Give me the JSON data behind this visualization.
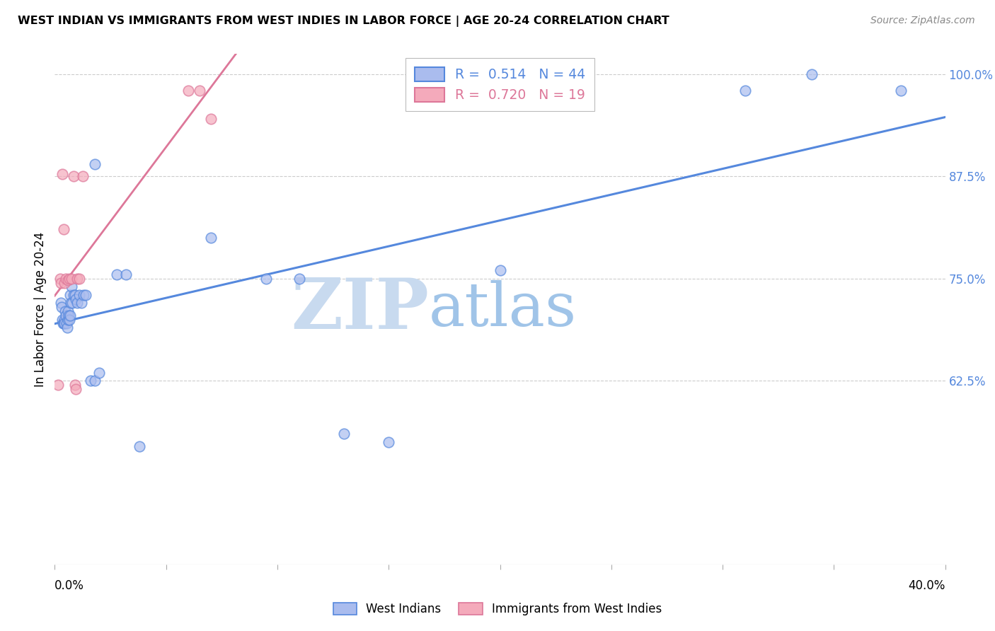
{
  "title": "WEST INDIAN VS IMMIGRANTS FROM WEST INDIES IN LABOR FORCE | AGE 20-24 CORRELATION CHART",
  "source_text": "Source: ZipAtlas.com",
  "ylabel": "In Labor Force | Age 20-24",
  "xlim": [
    0.0,
    0.4
  ],
  "ylim": [
    0.4,
    1.025
  ],
  "ytick_vals": [
    1.0,
    0.875,
    0.75,
    0.625
  ],
  "ytick_labels": [
    "100.0%",
    "87.5%",
    "75.0%",
    "62.5%"
  ],
  "grid_color": "#cccccc",
  "watermark_zip": "ZIP",
  "watermark_atlas": "atlas",
  "watermark_color_zip": "#c8daef",
  "watermark_color_atlas": "#a0c4e8",
  "background_color": "#ffffff",
  "blue_scatter_x": [
    0.0028,
    0.0032,
    0.0035,
    0.0038,
    0.004,
    0.0042,
    0.0045,
    0.0048,
    0.005,
    0.0052,
    0.0055,
    0.0058,
    0.006,
    0.0062,
    0.0065,
    0.0068,
    0.007,
    0.0072,
    0.0075,
    0.008,
    0.0085,
    0.009,
    0.0095,
    0.01,
    0.011,
    0.012,
    0.013,
    0.014,
    0.016,
    0.018,
    0.02,
    0.028,
    0.032,
    0.038,
    0.07,
    0.095,
    0.11,
    0.13,
    0.15,
    0.2,
    0.31,
    0.34,
    0.38,
    0.018
  ],
  "blue_scatter_y": [
    0.72,
    0.715,
    0.7,
    0.695,
    0.695,
    0.7,
    0.695,
    0.71,
    0.705,
    0.695,
    0.69,
    0.7,
    0.71,
    0.705,
    0.7,
    0.705,
    0.73,
    0.72,
    0.74,
    0.72,
    0.73,
    0.73,
    0.725,
    0.72,
    0.73,
    0.72,
    0.73,
    0.73,
    0.625,
    0.625,
    0.635,
    0.755,
    0.755,
    0.545,
    0.8,
    0.75,
    0.75,
    0.56,
    0.55,
    0.76,
    0.98,
    1.0,
    0.98,
    0.89
  ],
  "pink_scatter_x": [
    0.0015,
    0.0025,
    0.0028,
    0.0035,
    0.004,
    0.0042,
    0.005,
    0.0058,
    0.0065,
    0.0075,
    0.0085,
    0.009,
    0.0095,
    0.01,
    0.011,
    0.0125,
    0.06,
    0.065,
    0.07
  ],
  "pink_scatter_y": [
    0.62,
    0.75,
    0.745,
    0.878,
    0.81,
    0.745,
    0.75,
    0.748,
    0.75,
    0.75,
    0.875,
    0.62,
    0.615,
    0.75,
    0.75,
    0.875,
    0.98,
    0.98,
    0.945
  ],
  "blue_R": 0.514,
  "blue_N": 44,
  "pink_R": 0.72,
  "pink_N": 19,
  "blue_line_color": "#5588dd",
  "pink_line_color": "#dd7799",
  "blue_scatter_facecolor": "#aabcee",
  "pink_scatter_facecolor": "#f4aabb",
  "legend_blue_label": "West Indians",
  "legend_pink_label": "Immigrants from West Indies",
  "scatter_size": 110,
  "scatter_alpha": 0.7,
  "ytick_label_color": "#5588dd",
  "xtick_label_left": "0.0%",
  "xtick_label_right": "40.0%"
}
